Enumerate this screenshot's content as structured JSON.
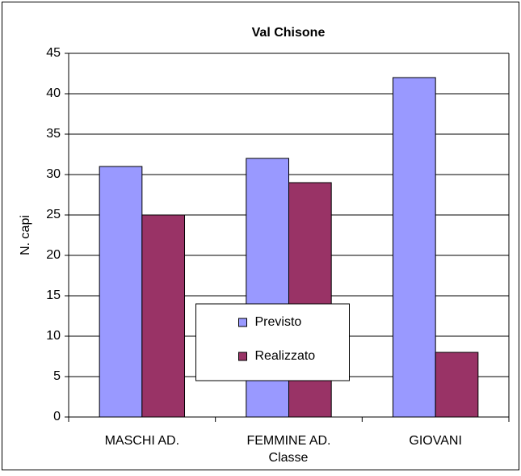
{
  "chart_data": {
    "type": "bar",
    "title": "Val Chisone",
    "x_label": "Classe",
    "y_label": "N. capi",
    "categories": [
      "MASCHI AD.",
      "FEMMINE AD.",
      "GIOVANI"
    ],
    "series": [
      {
        "name": "Previsto",
        "color": "#9999ff",
        "values": [
          31,
          32,
          42
        ]
      },
      {
        "name": "Realizzato",
        "color": "#993366",
        "values": [
          25,
          29,
          8
        ]
      }
    ],
    "ylim": [
      0,
      45
    ],
    "yticks": [
      0,
      5,
      10,
      15,
      20,
      25,
      30,
      35,
      40,
      45
    ],
    "grid": true,
    "legend": "center"
  }
}
